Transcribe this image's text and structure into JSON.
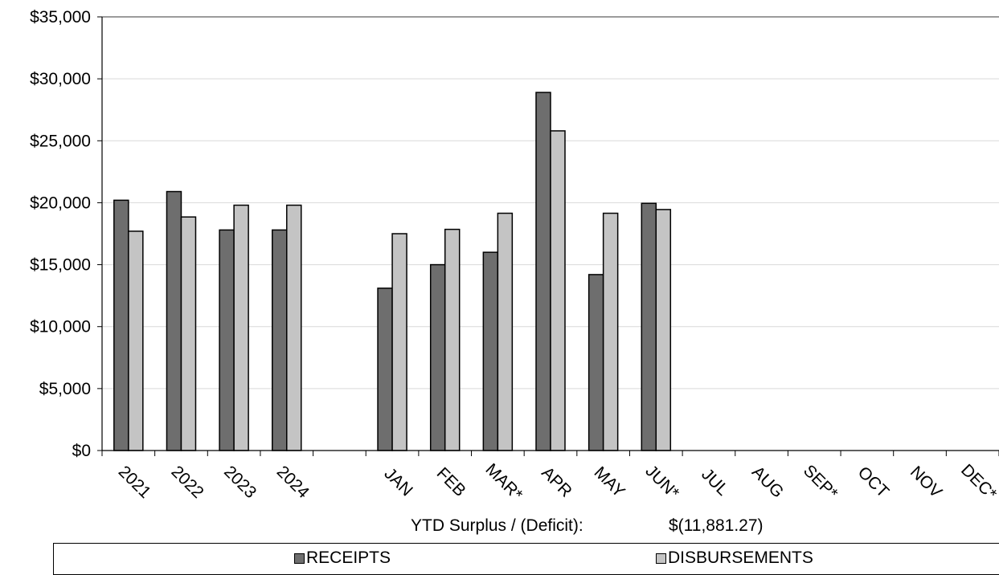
{
  "chart_data": {
    "type": "bar",
    "categories": [
      "2021",
      "2022",
      "2023",
      "2024",
      "",
      "JAN",
      "FEB",
      "MAR*",
      "APR",
      "MAY",
      "JUN*",
      "JUL",
      "AUG",
      "SEP*",
      "OCT",
      "NOV",
      "DEC*"
    ],
    "series": [
      {
        "name": "RECEIPTS",
        "color": "#6e6e6e",
        "values": [
          20200,
          20900,
          17800,
          17800,
          null,
          13100,
          15000,
          16000,
          28900,
          14200,
          19950,
          null,
          null,
          null,
          null,
          null,
          null
        ]
      },
      {
        "name": "DISBURSEMENTS",
        "color": "#c4c4c4",
        "values": [
          17700,
          18850,
          19800,
          19800,
          null,
          17500,
          17850,
          19150,
          25800,
          19150,
          19450,
          null,
          null,
          null,
          null,
          null,
          null
        ]
      }
    ],
    "ylim": [
      0,
      35000
    ],
    "yticks": [
      "$0",
      "$5,000",
      "$10,000",
      "$15,000",
      "$20,000",
      "$25,000",
      "$30,000",
      "$35,000"
    ],
    "ytick_values": [
      0,
      5000,
      10000,
      15000,
      20000,
      25000,
      30000,
      35000
    ],
    "grid": true,
    "legend": "bottom"
  },
  "ytd": {
    "label": "YTD Surplus / (Deficit):",
    "value": "$(11,881.27)"
  },
  "legend": {
    "receipts": "RECEIPTS",
    "disbursements": "DISBURSEMENTS"
  }
}
